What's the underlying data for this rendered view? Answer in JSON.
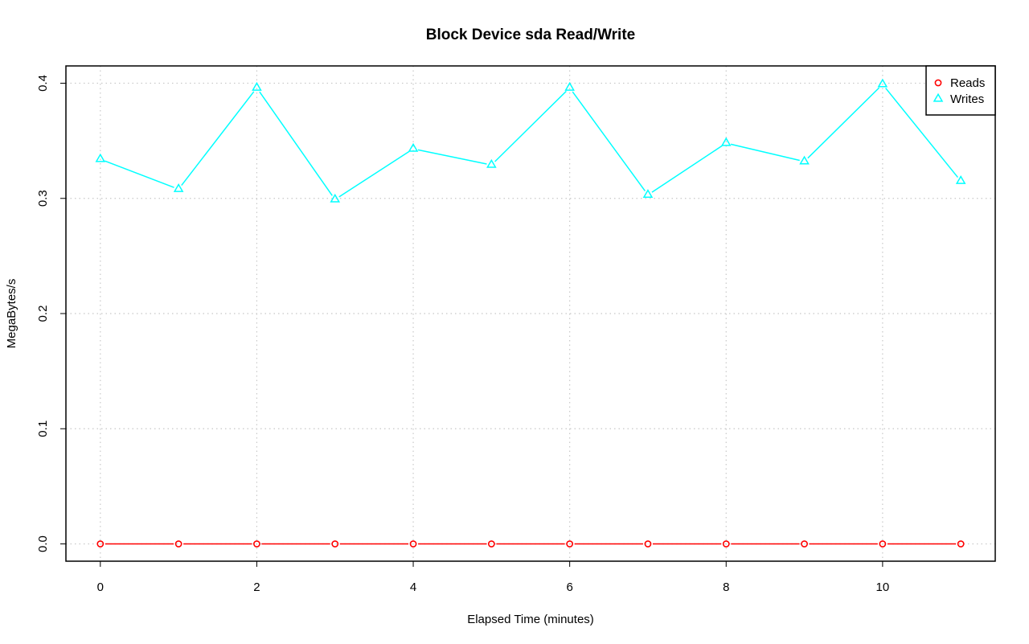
{
  "chart_data": {
    "type": "line",
    "title": "Block Device sda Read/Write",
    "xlabel": "Elapsed Time (minutes)",
    "ylabel": "MegaBytes/s",
    "x": [
      0,
      1,
      2,
      3,
      4,
      5,
      6,
      7,
      8,
      9,
      10,
      11
    ],
    "xlim": [
      -0.44,
      11.44
    ],
    "ylim": [
      -0.015,
      0.415
    ],
    "xticks": [
      0,
      2,
      4,
      6,
      8,
      10
    ],
    "xtick_labels": [
      "0",
      "2",
      "4",
      "6",
      "8",
      "10"
    ],
    "yticks": [
      0.0,
      0.1,
      0.2,
      0.3,
      0.4
    ],
    "ytick_labels": [
      "0.0",
      "0.1",
      "0.2",
      "0.3",
      "0.4"
    ],
    "grid": true,
    "legend_position": "top-right",
    "series": [
      {
        "name": "Reads",
        "color": "#ff0000",
        "marker": "circle",
        "line_style": "solid",
        "values": [
          0,
          0,
          0,
          0,
          0,
          0,
          0,
          0,
          0,
          0,
          0,
          0
        ]
      },
      {
        "name": "Writes",
        "color": "#00ffff",
        "marker": "triangle",
        "line_style": "solid",
        "values": [
          0.334,
          0.308,
          0.396,
          0.299,
          0.343,
          0.329,
          0.396,
          0.303,
          0.348,
          0.332,
          0.399,
          0.315
        ]
      }
    ]
  }
}
